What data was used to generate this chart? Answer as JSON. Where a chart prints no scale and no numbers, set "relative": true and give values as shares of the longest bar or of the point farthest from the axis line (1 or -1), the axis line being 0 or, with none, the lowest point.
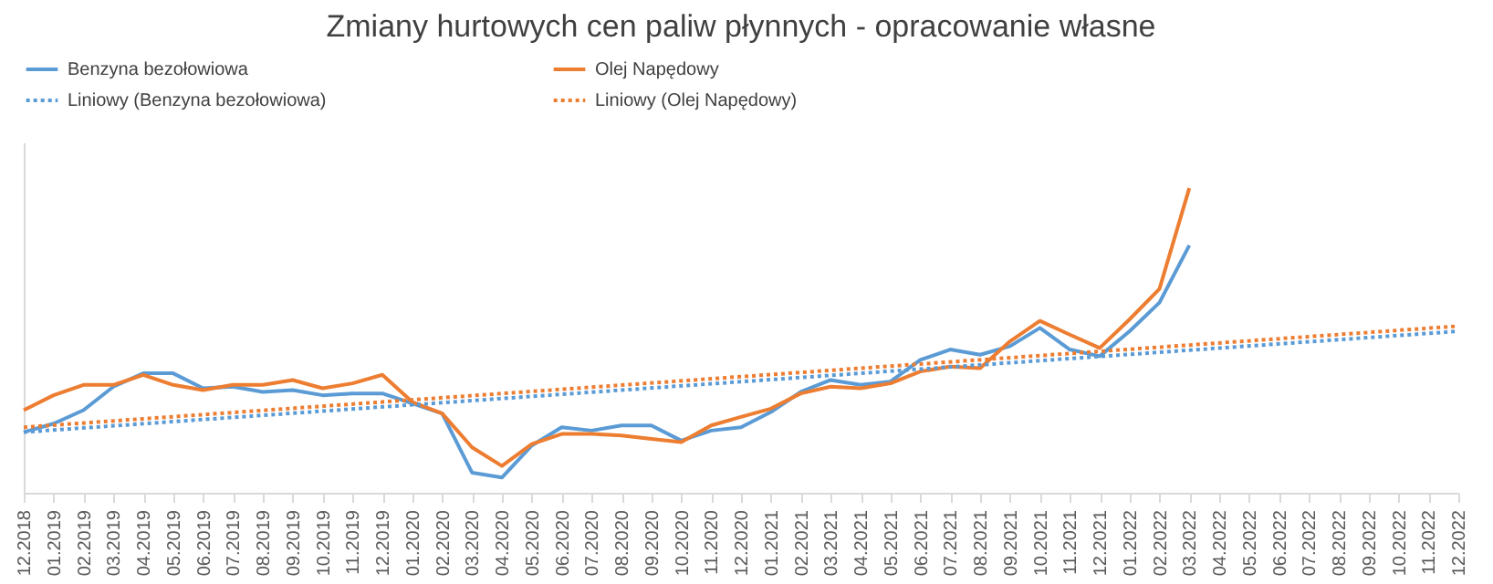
{
  "chart_data": {
    "type": "line",
    "title": "Zmiany hurtowych cen paliw płynnych - opracowanie własne",
    "relative": true,
    "legend": "top",
    "grid": false,
    "marker": "none",
    "categories": [
      "12.2018",
      "01.2019",
      "02.2019",
      "03.2019",
      "04.2019",
      "05.2019",
      "06.2019",
      "07.2019",
      "08.2019",
      "09.2019",
      "10.2019",
      "11.2019",
      "12.2019",
      "01.2020",
      "02.2020",
      "03.2020",
      "04.2020",
      "05.2020",
      "06.2020",
      "07.2020",
      "08.2020",
      "09.2020",
      "10.2020",
      "11.2020",
      "12.2020",
      "01.2021",
      "02.2021",
      "03.2021",
      "04.2021",
      "05.2021",
      "06.2021",
      "07.2021",
      "08.2021",
      "09.2021",
      "10.2021",
      "11.2021",
      "12.2021",
      "01.2022",
      "02.2022",
      "03.2022",
      "04.2022",
      "05.2022",
      "06.2022",
      "07.2022",
      "08.2022",
      "09.2022",
      "10.2022",
      "11.2022",
      "12.2022"
    ],
    "series": [
      {
        "name": "Benzyna bezołowiowa",
        "color": "#5b9bd5",
        "line_style": "solid",
        "values": [
          0.199,
          0.227,
          0.271,
          0.348,
          0.392,
          0.392,
          0.343,
          0.348,
          0.331,
          0.337,
          0.32,
          0.326,
          0.326,
          0.293,
          0.26,
          0.066,
          0.05,
          0.155,
          0.215,
          0.204,
          0.221,
          0.221,
          0.171,
          0.204,
          0.215,
          0.265,
          0.331,
          0.37,
          0.354,
          0.365,
          0.436,
          0.47,
          0.453,
          0.481,
          0.541,
          0.47,
          0.448,
          0.53,
          0.624,
          0.812,
          null,
          null,
          null,
          null,
          null,
          null,
          null,
          null,
          null
        ]
      },
      {
        "name": "Olej Napędowy",
        "color": "#ed7d31",
        "line_style": "solid",
        "values": [
          0.271,
          0.32,
          0.354,
          0.354,
          0.387,
          0.354,
          0.337,
          0.354,
          0.354,
          0.37,
          0.343,
          0.359,
          0.387,
          0.298,
          0.26,
          0.149,
          0.088,
          0.16,
          0.193,
          0.193,
          0.188,
          0.177,
          0.166,
          0.221,
          0.249,
          0.276,
          0.326,
          0.348,
          0.343,
          0.359,
          0.398,
          0.414,
          0.409,
          0.497,
          0.564,
          0.519,
          0.475,
          0.569,
          0.669,
          1.0,
          null,
          null,
          null,
          null,
          null,
          null,
          null,
          null,
          null
        ]
      },
      {
        "name": "Liniowy (Benzyna bezołowiowa)",
        "type": "line",
        "color": "#5b9bd5",
        "line_style": "dotted",
        "x": [
          "12.2018",
          "12.2022"
        ],
        "values": [
          0.199,
          0.53
        ]
      },
      {
        "name": "Liniowy (Olej Napędowy)",
        "type": "line",
        "color": "#ed7d31",
        "line_style": "dotted",
        "x": [
          "12.2018",
          "12.2022"
        ],
        "values": [
          0.215,
          0.547
        ]
      }
    ]
  }
}
